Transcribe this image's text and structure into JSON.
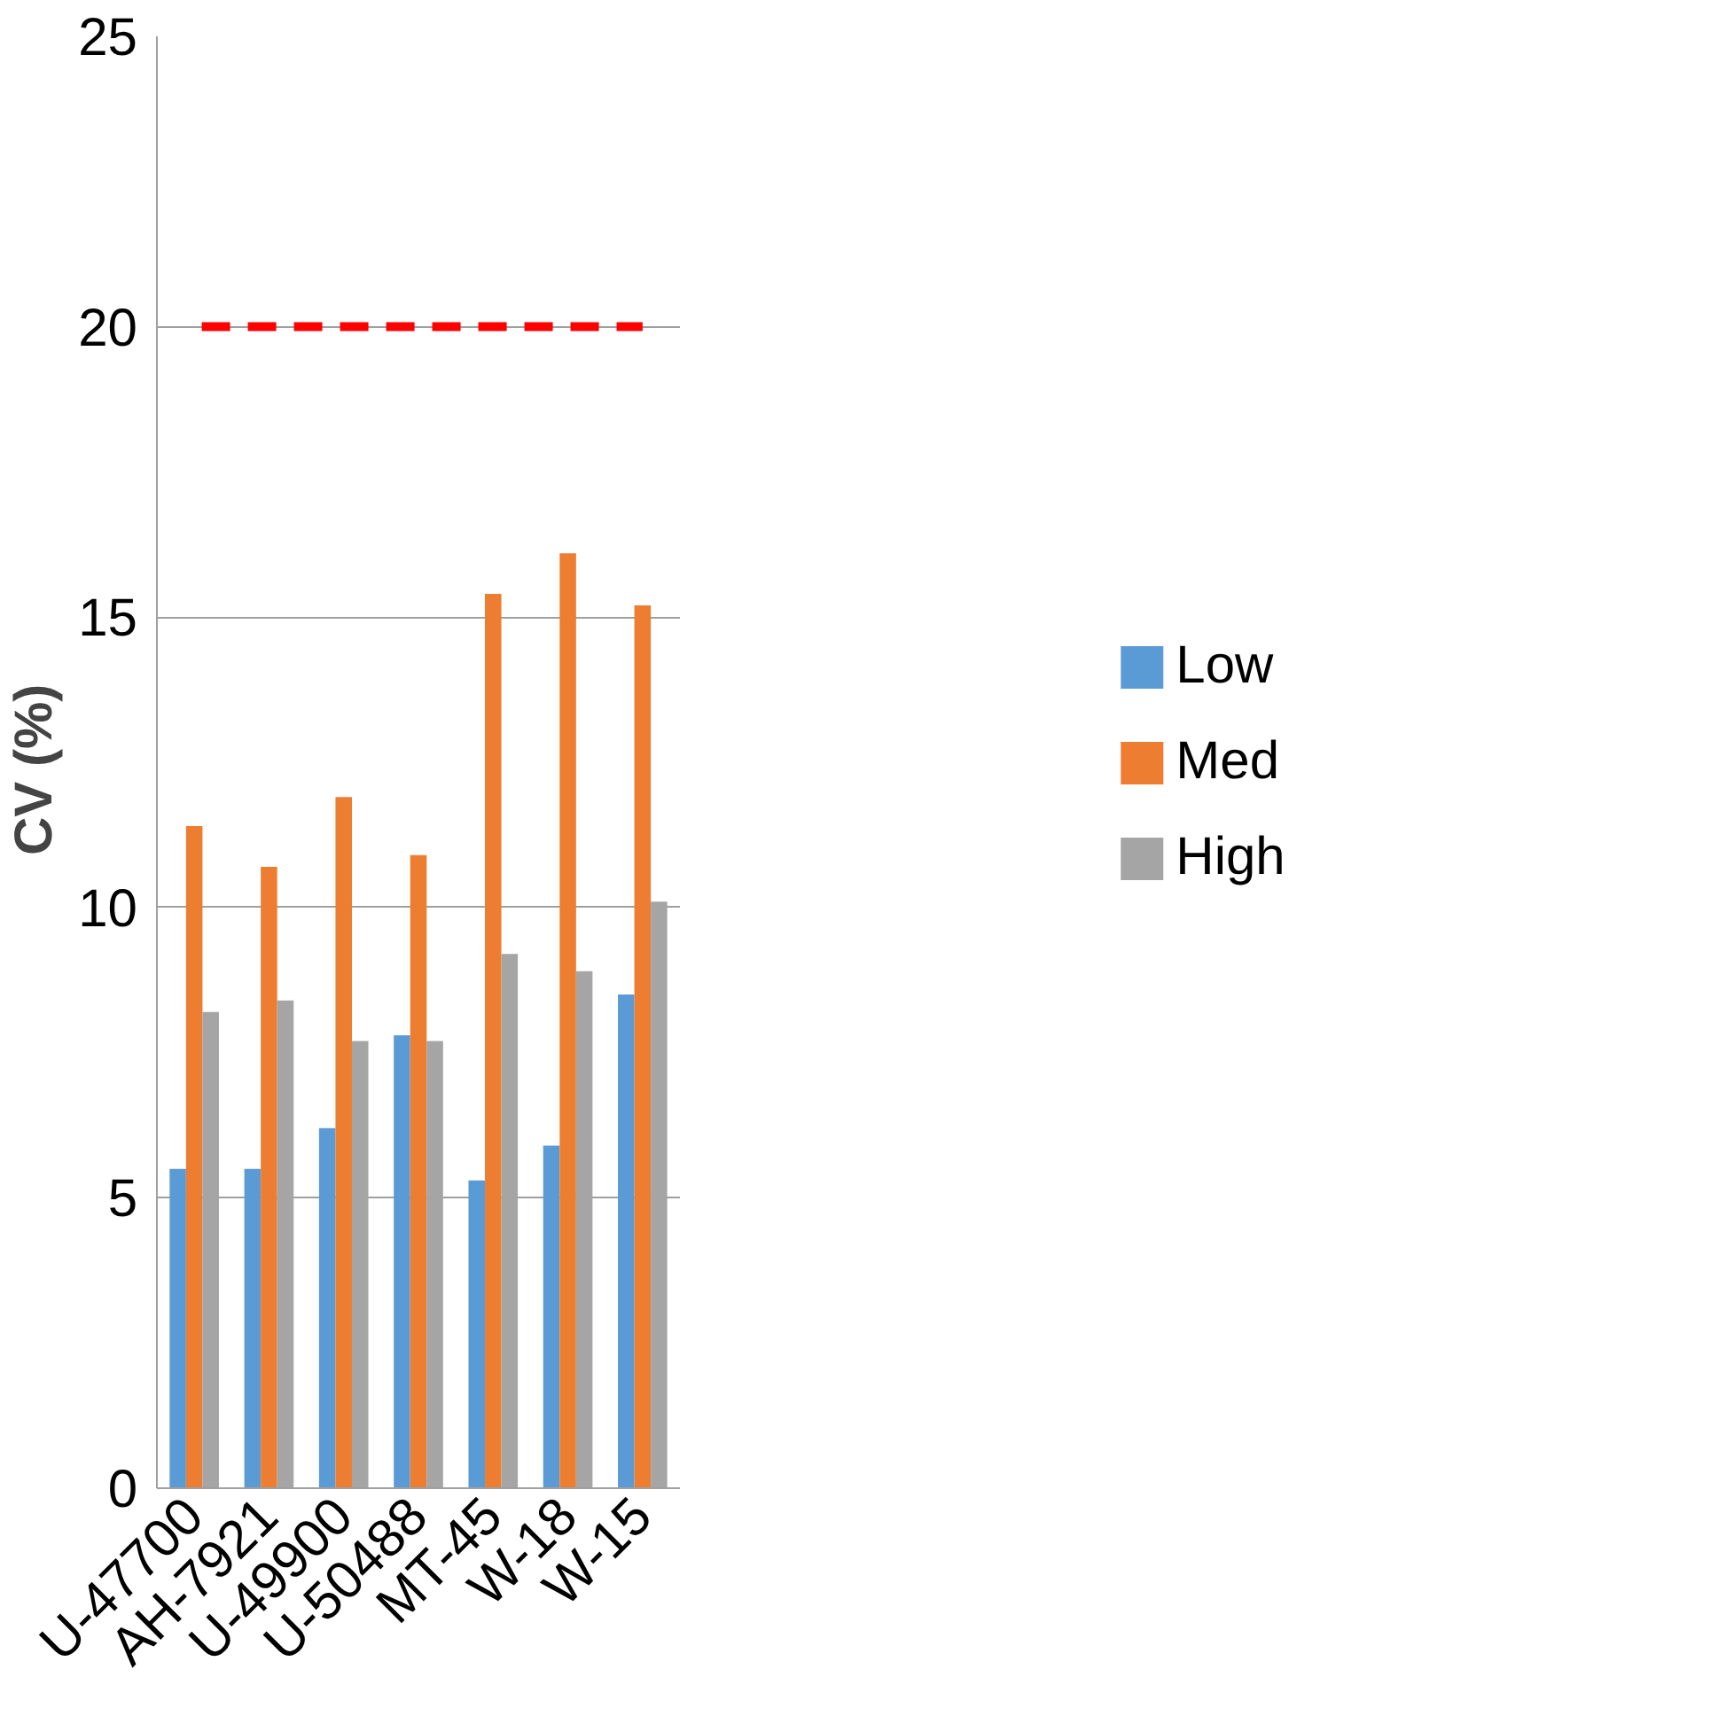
{
  "chart_data": {
    "type": "bar",
    "ylabel": "CV  (%)",
    "categories": [
      "U-47700",
      "AH-7921",
      "U-49900",
      "U-50488",
      "MT-45",
      "W-18",
      "W-15"
    ],
    "series": [
      {
        "name": "Low",
        "color": "#5b9bd5",
        "values": [
          5.5,
          5.5,
          6.2,
          7.8,
          5.3,
          5.9,
          8.5
        ]
      },
      {
        "name": "Med",
        "color": "#ed7d31",
        "values": [
          11.4,
          10.7,
          11.9,
          10.9,
          15.4,
          16.1,
          15.2
        ]
      },
      {
        "name": "High",
        "color": "#a5a5a5",
        "values": [
          8.2,
          8.4,
          7.7,
          7.7,
          9.2,
          8.9,
          10.1
        ]
      }
    ],
    "ylim": [
      0,
      25
    ],
    "yticks": [
      0,
      5,
      10,
      15,
      20,
      25
    ],
    "grid": "y",
    "legend": "right",
    "ref_lines": [
      {
        "axis": "y",
        "value": 20,
        "label": null,
        "color": "#ff0000",
        "line_style": "dashed"
      }
    ]
  }
}
